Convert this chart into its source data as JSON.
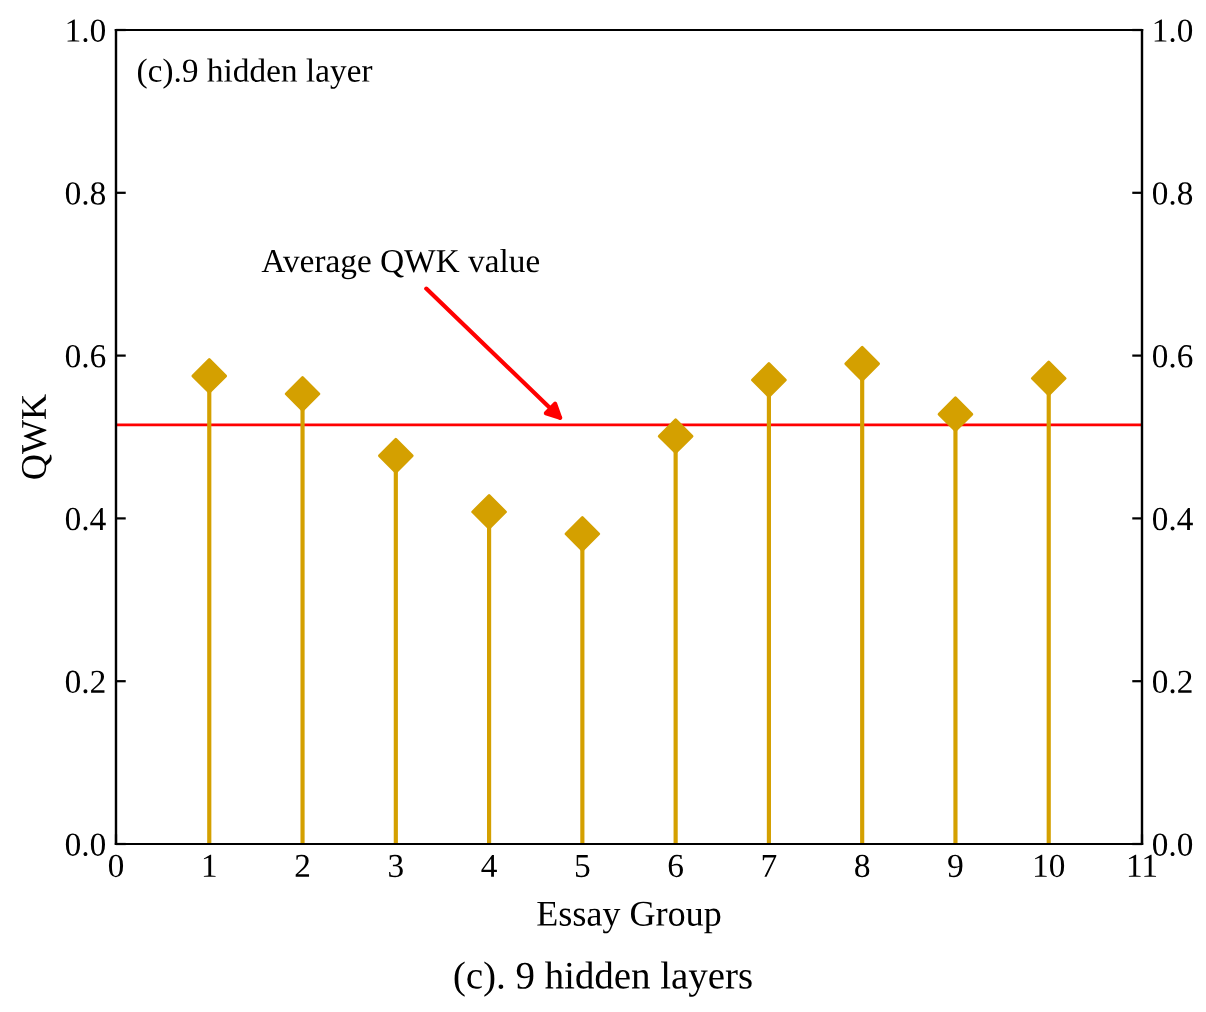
{
  "chart_data": {
    "type": "lollipop",
    "title": "(c).9 hidden layer",
    "xlabel": "Essay Group",
    "ylabel": "QWK",
    "x": [
      1,
      2,
      3,
      4,
      5,
      6,
      7,
      8,
      9,
      10
    ],
    "series": [
      {
        "color": "#d4a000",
        "values": [
          0.575,
          0.553,
          0.477,
          0.408,
          0.381,
          0.501,
          0.57,
          0.59,
          0.528,
          0.572
        ]
      }
    ],
    "xlim": [
      0,
      11
    ],
    "xticks": [
      0,
      1,
      2,
      3,
      4,
      5,
      6,
      7,
      8,
      9,
      10,
      11
    ],
    "ylim": [
      0,
      1.0
    ],
    "yticks": [
      {
        "value": 0,
        "label": "0.0"
      },
      0.2,
      0.4,
      0.6,
      0.8,
      {
        "value": 1.0,
        "label": "1.0"
      }
    ],
    "y2lim": [
      0,
      1.0
    ],
    "y2ticks": [
      {
        "value": 0,
        "label": "0.0"
      },
      0.2,
      0.4,
      0.6,
      0.8,
      {
        "value": 1.0,
        "label": "1.0"
      }
    ],
    "ref_lines": [
      {
        "axis": "y",
        "value": 0.515,
        "label": "Average QWK value",
        "color": "#ff0000"
      }
    ],
    "annotations": [
      "(c). 9 hidden layers"
    ],
    "marker": "diamond",
    "grid": false,
    "legend": false
  }
}
